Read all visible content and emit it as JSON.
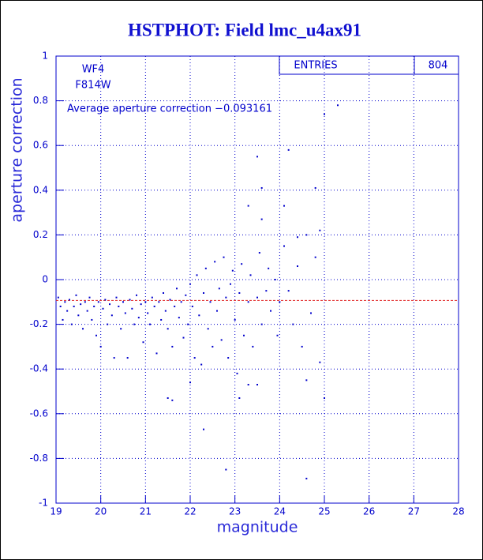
{
  "chart_data": {
    "type": "scatter",
    "title": "HSTPHOT: Field lmc_u4ax91",
    "x_label": "magnitude",
    "y_label": "aperture correction",
    "annotations": [
      "WF4",
      "F814W",
      "Average aperture correction −0.093161"
    ],
    "stats": {
      "label": "ENTRIES",
      "value": "804"
    },
    "mean_line": {
      "value": -0.093161,
      "color": "#e02020"
    },
    "color": "#0000cc",
    "grid": true,
    "xlim": [
      19,
      28
    ],
    "ylim": [
      -1,
      1
    ],
    "xticks": [
      19,
      20,
      21,
      22,
      23,
      24,
      25,
      26,
      27,
      28
    ],
    "yticks": [
      -1,
      -0.8,
      -0.6,
      -0.4,
      -0.2,
      0,
      0.2,
      0.4,
      0.6,
      0.8,
      1
    ],
    "x": [
      19.05,
      19.1,
      19.15,
      19.2,
      19.25,
      19.3,
      19.35,
      19.4,
      19.45,
      19.5,
      19.55,
      19.6,
      19.65,
      19.7,
      19.75,
      19.8,
      19.85,
      19.9,
      19.95,
      20.0,
      20.05,
      20.1,
      20.15,
      20.2,
      20.25,
      20.3,
      20.35,
      20.4,
      20.45,
      20.5,
      20.55,
      20.6,
      20.65,
      20.7,
      20.75,
      20.8,
      20.85,
      20.9,
      20.95,
      21.0,
      21.05,
      21.1,
      21.15,
      21.2,
      21.25,
      21.3,
      21.35,
      21.4,
      21.45,
      21.5,
      21.55,
      21.6,
      21.65,
      21.7,
      21.75,
      21.8,
      21.85,
      21.9,
      21.95,
      22.0,
      22.05,
      22.1,
      22.15,
      22.2,
      22.25,
      22.3,
      22.35,
      22.4,
      22.45,
      22.5,
      22.55,
      22.6,
      22.65,
      22.7,
      22.75,
      22.8,
      22.85,
      22.9,
      22.95,
      23.0,
      23.05,
      23.1,
      23.15,
      23.2,
      23.3,
      23.35,
      23.4,
      23.5,
      23.55,
      23.6,
      23.7,
      23.75,
      23.8,
      23.9,
      23.95,
      24.0,
      24.1,
      24.2,
      24.3,
      24.4,
      24.5,
      24.7,
      24.8,
      25.3,
      25.0,
      24.2,
      23.5,
      24.8,
      23.6,
      24.9,
      24.1,
      23.3,
      23.6,
      24.6,
      24.4,
      22.0,
      21.6,
      21.5,
      22.3,
      22.8,
      23.1,
      24.6,
      25.0,
      24.6,
      24.9,
      23.3,
      23.5
    ],
    "y": [
      -0.08,
      -0.12,
      -0.18,
      -0.1,
      -0.14,
      -0.09,
      -0.2,
      -0.12,
      -0.07,
      -0.16,
      -0.11,
      -0.22,
      -0.1,
      -0.14,
      -0.08,
      -0.18,
      -0.12,
      -0.25,
      -0.1,
      -0.3,
      -0.13,
      -0.09,
      -0.2,
      -0.11,
      -0.16,
      -0.35,
      -0.08,
      -0.12,
      -0.22,
      -0.1,
      -0.15,
      -0.35,
      -0.09,
      -0.13,
      -0.2,
      -0.07,
      -0.17,
      -0.11,
      -0.28,
      -0.1,
      -0.15,
      -0.2,
      -0.08,
      -0.12,
      -0.33,
      -0.1,
      -0.18,
      -0.06,
      -0.14,
      -0.22,
      -0.09,
      -0.3,
      -0.12,
      -0.04,
      -0.17,
      -0.1,
      -0.26,
      -0.07,
      -0.2,
      -0.02,
      -0.12,
      -0.35,
      0.02,
      -0.16,
      -0.38,
      -0.06,
      0.05,
      -0.22,
      -0.1,
      -0.3,
      0.08,
      -0.14,
      -0.04,
      -0.27,
      0.1,
      -0.08,
      -0.35,
      -0.02,
      0.04,
      -0.18,
      -0.42,
      -0.06,
      0.07,
      -0.25,
      -0.1,
      0.02,
      -0.3,
      -0.08,
      0.12,
      -0.2,
      -0.05,
      0.05,
      -0.14,
      0.0,
      -0.25,
      -0.1,
      0.15,
      -0.05,
      -0.2,
      0.06,
      -0.3,
      -0.15,
      0.1,
      0.78,
      0.74,
      0.58,
      0.55,
      0.41,
      0.41,
      0.22,
      0.33,
      0.33,
      0.27,
      0.2,
      0.19,
      -0.46,
      -0.54,
      -0.53,
      -0.67,
      -0.85,
      -0.53,
      -0.89,
      -0.53,
      -0.45,
      -0.37,
      -0.47,
      -0.47
    ]
  }
}
